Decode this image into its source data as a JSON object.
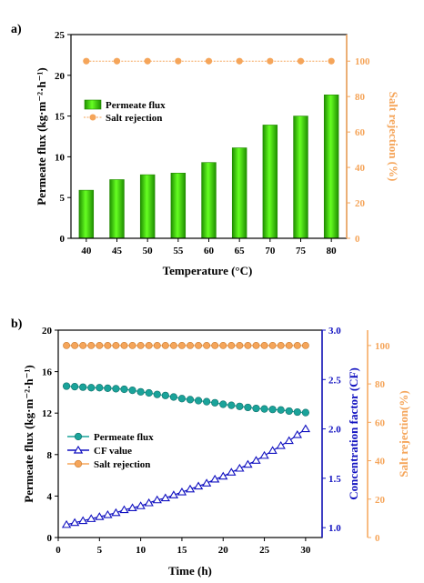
{
  "chart_data": [
    {
      "type": "bar",
      "panel_label": "a)",
      "categories": [
        "40",
        "45",
        "50",
        "55",
        "60",
        "65",
        "70",
        "75",
        "80"
      ],
      "series": [
        {
          "name": "Permeate flux",
          "axis": "left",
          "kind": "bar",
          "color": "#33cc00",
          "values": [
            5.9,
            7.2,
            7.8,
            8.0,
            9.3,
            11.1,
            13.9,
            15.0,
            17.6
          ]
        },
        {
          "name": "Salt rejection",
          "axis": "right",
          "kind": "line-marker",
          "color": "#f5a55a",
          "values": [
            100,
            100,
            100,
            100,
            100,
            100,
            100,
            100,
            100
          ]
        }
      ],
      "xlabel": "Temperature (°C)",
      "ylabel_left": "Permeate flux (kg·m⁻²·h⁻¹)",
      "ylabel_right": "Salt rejection (%)",
      "ylim_left": [
        0,
        25
      ],
      "yticks_left": [
        0,
        5,
        10,
        15,
        20,
        25
      ],
      "ylim_right": [
        0,
        115
      ],
      "yticks_right": [
        0,
        20,
        40,
        60,
        80,
        100
      ],
      "right_axis_color": "#f5a55a",
      "legend_position": "upper-left",
      "grid": false
    },
    {
      "type": "line",
      "panel_label": "b)",
      "x": [
        1,
        2,
        3,
        4,
        5,
        6,
        7,
        8,
        9,
        10,
        11,
        12,
        13,
        14,
        15,
        16,
        17,
        18,
        19,
        20,
        21,
        22,
        23,
        24,
        25,
        26,
        27,
        28,
        29,
        30
      ],
      "series": [
        {
          "name": "Permeate flux",
          "axis": "left",
          "marker": "circle",
          "color": "#1aa39a",
          "values": [
            14.6,
            14.55,
            14.5,
            14.45,
            14.45,
            14.4,
            14.35,
            14.3,
            14.2,
            14.05,
            13.95,
            13.8,
            13.7,
            13.55,
            13.4,
            13.3,
            13.2,
            13.1,
            13.0,
            12.85,
            12.75,
            12.65,
            12.55,
            12.45,
            12.4,
            12.35,
            12.3,
            12.2,
            12.1,
            12.05
          ]
        },
        {
          "name": "CF value",
          "axis": "right1",
          "marker": "triangle",
          "color": "#1010c0",
          "values": [
            1.03,
            1.05,
            1.07,
            1.09,
            1.11,
            1.13,
            1.15,
            1.18,
            1.2,
            1.22,
            1.25,
            1.28,
            1.3,
            1.33,
            1.36,
            1.39,
            1.42,
            1.45,
            1.49,
            1.52,
            1.56,
            1.6,
            1.64,
            1.68,
            1.73,
            1.78,
            1.83,
            1.88,
            1.94,
            2.0
          ]
        },
        {
          "name": "Salt rejection",
          "axis": "right2",
          "marker": "circle-cross",
          "color": "#f5a55a",
          "values": [
            100,
            100,
            100,
            100,
            100,
            100,
            100,
            100,
            100,
            100,
            100,
            100,
            100,
            100,
            100,
            100,
            100,
            100,
            100,
            100,
            100,
            100,
            100,
            100,
            100,
            100,
            100,
            100,
            100,
            100
          ]
        }
      ],
      "xlabel": "Time (h)",
      "ylabel_left": "Permeate flux (kg·m⁻²·h⁻¹)",
      "ylabel_right1": "Concentration factor (CF)",
      "ylabel_right2": "Salt rejection(%)",
      "xlim": [
        0,
        32
      ],
      "xticks": [
        0,
        5,
        10,
        15,
        20,
        25,
        30
      ],
      "ylim_left": [
        0,
        20
      ],
      "yticks_left": [
        0,
        4,
        8,
        12,
        16,
        20
      ],
      "ylim_right1": [
        0.9,
        3.0
      ],
      "yticks_right1": [
        "1.0",
        "1.5",
        "2.0",
        "2.5",
        "3.0"
      ],
      "ylim_right2": [
        0,
        108
      ],
      "yticks_right2": [
        0,
        20,
        40,
        60,
        80,
        100
      ],
      "right1_axis_color": "#1010c0",
      "right2_axis_color": "#f5a55a",
      "legend_position": "lower-left",
      "grid": false
    }
  ]
}
